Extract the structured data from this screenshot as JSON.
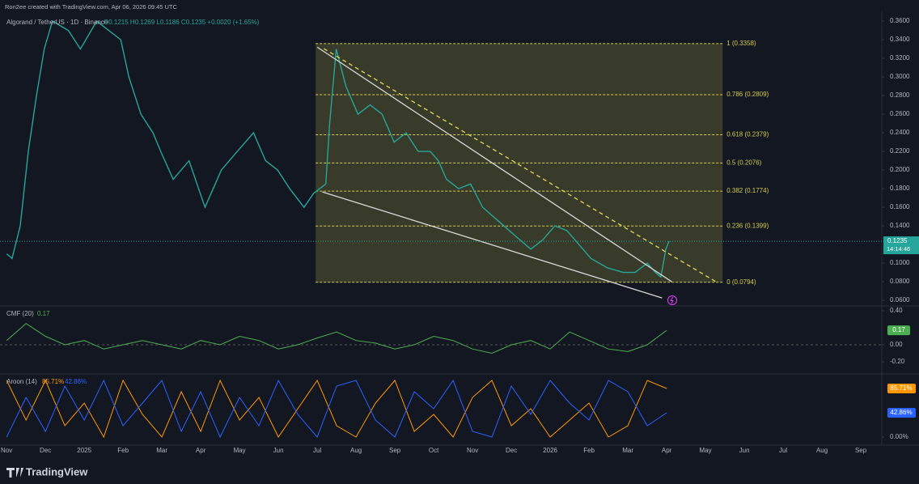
{
  "header": {
    "credit": "Ron2ee created with TradingView.com, Apr 06, 2026 09:45 UTC",
    "brand": "TradingView"
  },
  "chart_data": [
    {
      "type": "line",
      "legend": "Algorand / TetherUS · 1D · Binance",
      "ohlc": "O0.1215 H0.1269 L0.1186 C0.1235 +0.0020 (+1.65%)",
      "xlim": [
        -0.17,
        22.54
      ],
      "ylim": [
        0.054,
        0.367
      ],
      "xticks": [
        {
          "value": 0,
          "label": "Nov"
        },
        {
          "value": 1,
          "label": "Dec"
        },
        {
          "value": 2,
          "label": "2025"
        },
        {
          "value": 3,
          "label": "Feb"
        },
        {
          "value": 4,
          "label": "Mar"
        },
        {
          "value": 5,
          "label": "Apr"
        },
        {
          "value": 6,
          "label": "May"
        },
        {
          "value": 7,
          "label": "Jun"
        },
        {
          "value": 8,
          "label": "Jul"
        },
        {
          "value": 9,
          "label": "Aug"
        },
        {
          "value": 10,
          "label": "Sep"
        },
        {
          "value": 11,
          "label": "Oct"
        },
        {
          "value": 12,
          "label": "Nov"
        },
        {
          "value": 13,
          "label": "Dec"
        },
        {
          "value": 14,
          "label": "2026"
        },
        {
          "value": 15,
          "label": "Feb"
        },
        {
          "value": 16,
          "label": "Mar"
        },
        {
          "value": 17,
          "label": "Apr"
        },
        {
          "value": 18,
          "label": "May"
        },
        {
          "value": 19,
          "label": "Jun"
        },
        {
          "value": 20,
          "label": "Jul"
        },
        {
          "value": 21,
          "label": "Aug"
        },
        {
          "value": 22,
          "label": "Sep"
        }
      ],
      "yticks": [
        {
          "value": 0.36,
          "label": "0.3600"
        },
        {
          "value": 0.34,
          "label": "0.3400"
        },
        {
          "value": 0.32,
          "label": "0.3200"
        },
        {
          "value": 0.3,
          "label": "0.3000"
        },
        {
          "value": 0.28,
          "label": "0.2800"
        },
        {
          "value": 0.26,
          "label": "0.2600"
        },
        {
          "value": 0.24,
          "label": "0.2400"
        },
        {
          "value": 0.22,
          "label": "0.2200"
        },
        {
          "value": 0.2,
          "label": "0.2000"
        },
        {
          "value": 0.18,
          "label": "0.1800"
        },
        {
          "value": 0.16,
          "label": "0.1600"
        },
        {
          "value": 0.14,
          "label": "0.1400"
        },
        {
          "value": 0.1,
          "label": "0.1000"
        },
        {
          "value": 0.08,
          "label": "0.0800"
        },
        {
          "value": 0.06,
          "label": "0.0600"
        }
      ],
      "series": [
        {
          "color": "#26a69a",
          "x": [
            0,
            0.14,
            0.35,
            0.56,
            0.77,
            0.97,
            1.18,
            1.59,
            1.9,
            2.32,
            2.94,
            3.15,
            3.46,
            3.77,
            3.97,
            4.29,
            4.7,
            5.11,
            5.53,
            5.94,
            6.36,
            6.67,
            6.98,
            7.29,
            7.66,
            7.91,
            8.22,
            8.32,
            8.49,
            8.74,
            9.05,
            9.36,
            9.67,
            9.98,
            10.29,
            10.6,
            10.91,
            11.12,
            11.33,
            11.64,
            11.95,
            12.26,
            12.67,
            13.08,
            13.5,
            13.81,
            14.12,
            14.43,
            14.74,
            15.05,
            15.47,
            15.88,
            16.19,
            16.5,
            16.71,
            16.85,
            16.98,
            17.06
          ],
          "values": [
            0.11,
            0.105,
            0.14,
            0.22,
            0.28,
            0.33,
            0.36,
            0.35,
            0.33,
            0.36,
            0.34,
            0.3,
            0.26,
            0.24,
            0.22,
            0.19,
            0.21,
            0.16,
            0.2,
            0.22,
            0.24,
            0.21,
            0.2,
            0.18,
            0.16,
            0.175,
            0.185,
            0.25,
            0.33,
            0.29,
            0.26,
            0.27,
            0.26,
            0.23,
            0.24,
            0.22,
            0.22,
            0.21,
            0.19,
            0.18,
            0.185,
            0.16,
            0.145,
            0.13,
            0.115,
            0.125,
            0.14,
            0.135,
            0.12,
            0.105,
            0.095,
            0.09,
            0.09,
            0.1,
            0.09,
            0.085,
            0.115,
            0.1235
          ]
        }
      ],
      "current_price": 0.1235,
      "countdown": "14:14:46",
      "fib": {
        "x": [
          7.96,
          18.44
        ],
        "color": "#d4cc4a",
        "levels": [
          {
            "value": 0.3358,
            "label": "1 (0.3358)"
          },
          {
            "value": 0.2809,
            "label": "0.786 (0.2809)"
          },
          {
            "value": 0.2379,
            "label": "0.618 (0.2379)"
          },
          {
            "value": 0.2076,
            "label": "0.5 (0.2076)"
          },
          {
            "value": 0.1774,
            "label": "0.382 (0.1774)"
          },
          {
            "value": 0.1399,
            "label": "0.236 (0.1399)"
          },
          {
            "value": 0.0794,
            "label": "0 (0.0794)"
          }
        ]
      },
      "trendlines": [
        {
          "x": [
            8.0,
            17.13
          ],
          "y": [
            0.332,
            0.08
          ],
          "color": "#d8d8d8",
          "dashed": false
        },
        {
          "x": [
            8.13,
            16.88
          ],
          "y": [
            0.1765,
            0.0626
          ],
          "color": "#d8d8d8",
          "dashed": false
        },
        {
          "x": [
            8.17,
            18.27
          ],
          "y": [
            0.3304,
            0.08
          ],
          "color": "#e0d95a",
          "dashed": true
        }
      ]
    },
    {
      "type": "line",
      "legend": "CMF (20)",
      "last": 0.17,
      "xlim": [
        -0.17,
        22.54
      ],
      "ylim": [
        -0.343,
        0.457
      ],
      "yticks": [
        {
          "value": 0.4,
          "label": "0.40"
        },
        {
          "value": 0,
          "label": "0.00"
        },
        {
          "value": -0.2,
          "label": "-0.20"
        }
      ],
      "series": [
        {
          "color": "#4caf50",
          "x": [
            0,
            0.5,
            1,
            1.5,
            2,
            2.5,
            3,
            3.5,
            4,
            4.5,
            5,
            5.5,
            6,
            6.5,
            7,
            7.5,
            8,
            8.5,
            9,
            9.5,
            10,
            10.5,
            11,
            11.5,
            12,
            12.5,
            13,
            13.5,
            14,
            14.5,
            15,
            15.5,
            16,
            16.5,
            17
          ],
          "values": [
            0.05,
            0.25,
            0.1,
            0.0,
            0.05,
            -0.05,
            0.0,
            0.05,
            0.0,
            -0.05,
            0.05,
            0.0,
            0.1,
            0.05,
            -0.05,
            0.0,
            0.08,
            0.15,
            0.05,
            0.02,
            -0.05,
            0.0,
            0.1,
            0.05,
            -0.05,
            -0.1,
            0.0,
            0.05,
            -0.05,
            0.15,
            0.05,
            -0.05,
            -0.08,
            0.0,
            0.17
          ]
        }
      ]
    },
    {
      "type": "line",
      "legend": "Aroon (14)",
      "xlim": [
        -0.17,
        22.54
      ],
      "ylim": [
        -14.3,
        111.4
      ],
      "yticks": [
        {
          "value": 0,
          "label": "0.00%"
        }
      ],
      "series": [
        {
          "color": "#ff9800",
          "last": {
            "value": 85.71,
            "label": "85.71%"
          },
          "x": [
            0,
            0.5,
            1,
            1.5,
            2,
            2.5,
            3,
            3.5,
            4,
            4.5,
            5,
            5.5,
            6,
            6.5,
            7,
            7.5,
            8,
            8.5,
            9,
            9.5,
            10,
            10.5,
            11,
            11.5,
            12,
            12.5,
            13,
            13.5,
            14,
            14.5,
            15,
            15.5,
            16,
            16.5,
            17
          ],
          "values": [
            100,
            30,
            100,
            20,
            60,
            0,
            100,
            40,
            0,
            80,
            10,
            100,
            30,
            70,
            0,
            50,
            100,
            20,
            0,
            60,
            100,
            10,
            40,
            0,
            70,
            100,
            20,
            50,
            0,
            30,
            60,
            0,
            20,
            100,
            85.71
          ]
        },
        {
          "color": "#2962ff",
          "last": {
            "value": 42.86,
            "label": "42.86%"
          },
          "x": [
            0,
            0.5,
            1,
            1.5,
            2,
            2.5,
            3,
            3.5,
            4,
            4.5,
            5,
            5.5,
            6,
            6.5,
            7,
            7.5,
            8,
            8.5,
            9,
            9.5,
            10,
            10.5,
            11,
            11.5,
            12,
            12.5,
            13,
            13.5,
            14,
            14.5,
            15,
            15.5,
            16,
            16.5,
            17
          ],
          "values": [
            0,
            70,
            10,
            90,
            30,
            100,
            20,
            60,
            100,
            10,
            80,
            0,
            70,
            20,
            100,
            40,
            0,
            90,
            100,
            30,
            0,
            80,
            50,
            100,
            10,
            0,
            90,
            40,
            100,
            60,
            30,
            100,
            80,
            20,
            42.86
          ]
        }
      ]
    }
  ]
}
